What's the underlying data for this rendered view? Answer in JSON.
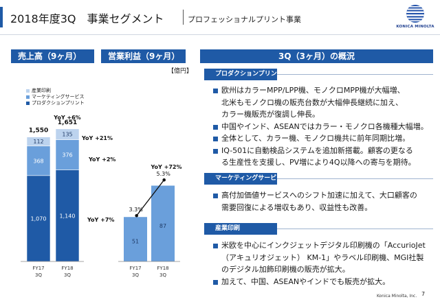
{
  "header": {
    "title": "2018年度3Q　事業セグメント",
    "subtitle": "プロフェッショナルプリント事業",
    "logo_text": "KONICA MINOLTA"
  },
  "panels": {
    "sales_title": "売上高（9ヶ月）",
    "op_title": "営業利益（9ヶ月）",
    "overview_title": "3Q（3ヶ月）の概況",
    "unit": "【億円】"
  },
  "legend": [
    {
      "label": "産業印刷",
      "color": "#bcd3ee"
    },
    {
      "label": "マーケティングサービス",
      "color": "#6a9fdb"
    },
    {
      "label": "プロダクションプリント",
      "color": "#1f5aa6"
    }
  ],
  "chart_data": [
    {
      "type": "bar",
      "stacked": true,
      "categories": [
        "FY17\n3Q",
        "FY18\n3Q"
      ],
      "category_lines": [
        [
          "FY17",
          "3Q"
        ],
        [
          "FY18",
          "3Q"
        ]
      ],
      "series": [
        {
          "name": "プロダクションプリント",
          "values": [
            1070,
            1140
          ],
          "labels": [
            "1,070",
            "1,140"
          ],
          "color": "#1f5aa6",
          "yoy": "YoY +7%"
        },
        {
          "name": "マーケティングサービス",
          "values": [
            368,
            376
          ],
          "labels": [
            "368",
            "376"
          ],
          "color": "#6a9fdb",
          "yoy": "YoY +2%"
        },
        {
          "name": "産業印刷",
          "values": [
            112,
            135
          ],
          "labels": [
            "112",
            "135"
          ],
          "color": "#bcd3ee",
          "yoy": "YoY +21%"
        }
      ],
      "totals": [
        1550,
        1651
      ],
      "total_labels": [
        "1,550",
        "1,651"
      ],
      "total_yoy": "YoY +6%"
    },
    {
      "type": "bar",
      "categories": [
        "FY17\n3Q",
        "FY18\n3Q"
      ],
      "category_lines": [
        [
          "FY17",
          "3Q"
        ],
        [
          "FY18",
          "3Q"
        ]
      ],
      "values": [
        51,
        87
      ],
      "labels": [
        "51",
        "87"
      ],
      "color": "#6a9fdb",
      "yoy": "YoY +72%",
      "margin_line": {
        "values": [
          3.3,
          5.3
        ],
        "labels": [
          "3.3%",
          "5.3%"
        ]
      }
    }
  ],
  "sections": [
    {
      "tag": "プロダクションプリント",
      "bullets": [
        [
          "欧州はカラーMPP/LPP機、モノクロMPP機が大幅増、",
          "北米もモノクロ機の販売台数が大幅伸長継続に加え、",
          "カラー機販売が復調し伸長。"
        ],
        [
          "中国やインド、ASEANではカラー・モノクロ各機種大幅増。"
        ],
        [
          "全体として、カラー機、モノクロ機共に前年同期比増。"
        ],
        [
          "IQ-501に自動検品システムを追加新搭載。顧客の更なる",
          "る生産性を支援し、PV増により4Q以降への寄与を期待。"
        ]
      ]
    },
    {
      "tag": "マーケティングサービス",
      "bullets": [
        [
          "高付加価値サービスへのシフト加速に加えて、大口顧客の",
          "需要回復による増収もあり、収益性も改善。"
        ]
      ]
    },
    {
      "tag": "産業印刷",
      "bullets": [
        [
          "米欧を中心にインクジェットデジタル印刷機の「AccurioJet",
          "（アキュリオジェット） KM-1」やラベル印刷機、MGI社製",
          "のデジタル加飾印刷機の販売が拡大。"
        ],
        [
          "加えて、中国、ASEANやインドでも販売が拡大。"
        ]
      ]
    }
  ],
  "footer": {
    "company": "Konica Minolta, Inc.",
    "page": "7"
  }
}
